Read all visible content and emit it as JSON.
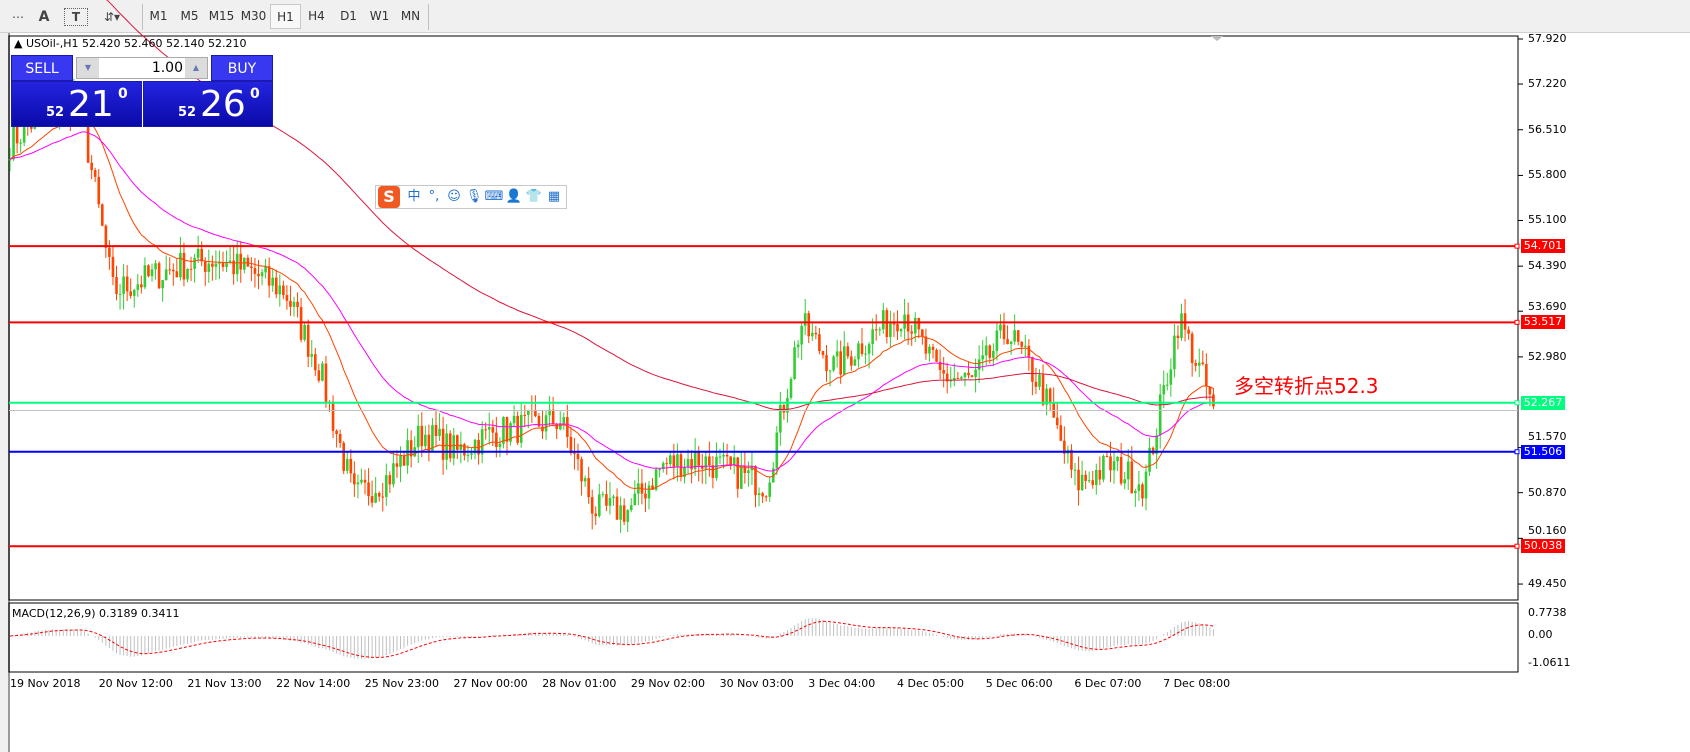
{
  "toolbar": {
    "tools": [
      {
        "name": "grid-fibonacci-icon",
        "glyph": "⋯"
      },
      {
        "name": "text-icon",
        "glyph": "A"
      },
      {
        "name": "text-label-icon",
        "glyph": "T"
      },
      {
        "name": "arrows-icon",
        "glyph": "⇵▾"
      }
    ],
    "timeframes": [
      "M1",
      "M5",
      "M15",
      "M30",
      "H1",
      "H4",
      "D1",
      "W1",
      "MN"
    ],
    "active_timeframe": "H1"
  },
  "chart": {
    "symbol_line": "USOil-,H1  52.420 52.460 52.140 52.210",
    "trade": {
      "sell_label": "SELL",
      "buy_label": "BUY",
      "lot": "1.00",
      "sell_small": "52",
      "sell_big": "21",
      "sell_sup": "0",
      "buy_small": "52",
      "buy_big": "26",
      "buy_sup": "0"
    },
    "annotation": "多空转折点52.3",
    "price_axis": [
      "57.920",
      "57.220",
      "56.510",
      "55.800",
      "55.100",
      "54.390",
      "53.690",
      "52.980",
      "51.570",
      "50.870",
      "50.160",
      "49.450"
    ],
    "price_axis_values": [
      57.92,
      57.22,
      56.51,
      55.8,
      55.1,
      54.39,
      53.69,
      52.98,
      51.57,
      50.87,
      50.16,
      49.45
    ],
    "levels": [
      {
        "label": "54.701",
        "value": 54.701,
        "color": "#ff0000"
      },
      {
        "label": "53.517",
        "value": 53.517,
        "color": "#ff0000"
      },
      {
        "label": "52.267",
        "value": 52.267,
        "color": "#00ff7f"
      },
      {
        "label": "51.506",
        "value": 51.506,
        "color": "#0000ff"
      },
      {
        "label": "50.038",
        "value": 50.038,
        "color": "#ff0000"
      }
    ],
    "current_price": 52.21,
    "colors": {
      "bull": "#32cd32",
      "bear": "#ff4500",
      "ma_fast": "#ff4500",
      "ma_mid": "#ff00ff",
      "ma_slow": "#dc143c",
      "macd_hist": "#c0c0c0",
      "macd_signal": "#ff0000"
    },
    "close_path": [
      56.3,
      56.8,
      57.0,
      54.0,
      54.2,
      54.4,
      54.5,
      54.3,
      54.0,
      52.8,
      50.8,
      51.1,
      51.8,
      51.5,
      51.8,
      51.9,
      52.0,
      50.6,
      50.6,
      51.3,
      51.4,
      51.2,
      51.0,
      53.5,
      52.8,
      53.3,
      53.7,
      52.7,
      52.6,
      53.4,
      52.5,
      51.0,
      51.3,
      51.0,
      53.6,
      52.21
    ],
    "time_axis": [
      "19 Nov 2018",
      "20 Nov 12:00",
      "21 Nov 13:00",
      "22 Nov 14:00",
      "25 Nov 23:00",
      "27 Nov 00:00",
      "28 Nov 01:00",
      "29 Nov 02:00",
      "30 Nov 03:00",
      "3 Dec 04:00",
      "4 Dec 05:00",
      "5 Dec 06:00",
      "6 Dec 07:00",
      "7 Dec 08:00"
    ]
  },
  "macd": {
    "label": "MACD(12,26,9) 0.3189 0.3411",
    "axis": [
      "0.7738",
      "0.00",
      "-1.0611"
    ]
  },
  "ime_bar": {
    "items": [
      {
        "name": "sogou-logo-icon",
        "glyph": "S"
      },
      {
        "name": "chinese-mode-icon",
        "glyph": "中"
      },
      {
        "name": "punctuation-icon",
        "glyph": "°,"
      },
      {
        "name": "emoji-icon",
        "glyph": "☺"
      },
      {
        "name": "microphone-icon",
        "glyph": "🎙"
      },
      {
        "name": "keyboard-icon",
        "glyph": "⌨"
      },
      {
        "name": "user-icon",
        "glyph": "👤"
      },
      {
        "name": "skin-shirt-icon",
        "glyph": "👕"
      },
      {
        "name": "toolbox-icon",
        "glyph": "▦"
      }
    ]
  }
}
